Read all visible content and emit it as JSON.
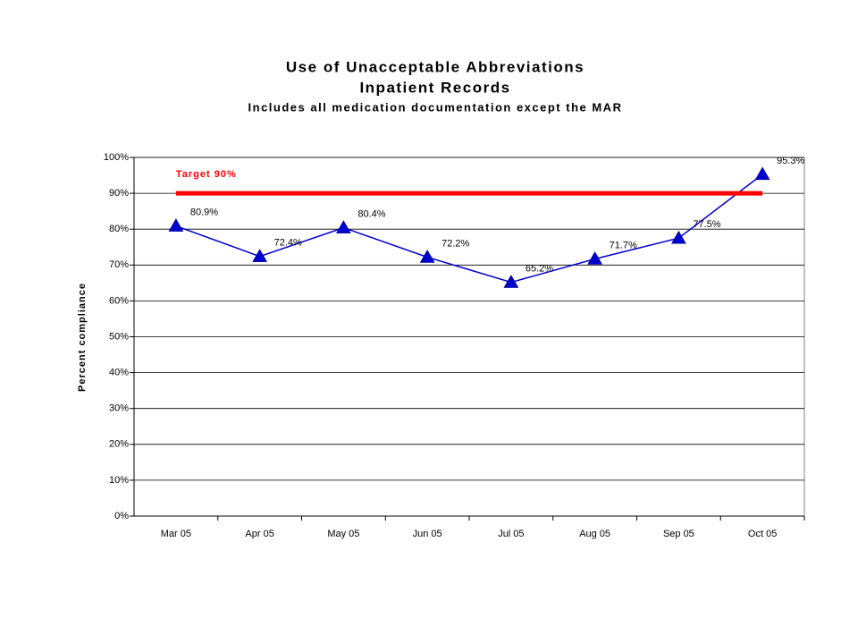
{
  "chart_data": {
    "type": "line",
    "title": "Use of Unacceptable Abbreviations",
    "subtitle": "Inpatient Records",
    "note": "Includes all medication documentation except the MAR",
    "y_label": "Percent compliance",
    "categories": [
      "Mar 05",
      "Apr 05",
      "May 05",
      "Jun 05",
      "Jul 05",
      "Aug 05",
      "Sep 05",
      "Oct 05"
    ],
    "series": [
      {
        "color": "#0000cc",
        "values": [
          80.9,
          72.4,
          80.4,
          72.2,
          65.2,
          71.7,
          77.5,
          95.3
        ],
        "value_labels": [
          "80.9%",
          "72.4%",
          "80.4%",
          "72.2%",
          "65.2%",
          "71.7%",
          "77.5%",
          "95.3%"
        ]
      },
      {
        "name": "Target 90%",
        "color": "#ff0000",
        "values": [
          90,
          90,
          90,
          90,
          90,
          90,
          90,
          90
        ]
      }
    ],
    "ylim": [
      0,
      100
    ],
    "yticks": [
      {
        "value": 0,
        "label": "0%"
      },
      {
        "value": 10,
        "label": "10%"
      },
      {
        "value": 20,
        "label": "20%"
      },
      {
        "value": 30,
        "label": "30%"
      },
      {
        "value": 40,
        "label": "40%"
      },
      {
        "value": 50,
        "label": "50%"
      },
      {
        "value": 60,
        "label": "60%"
      },
      {
        "value": 70,
        "label": "70%"
      },
      {
        "value": 80,
        "label": "80%"
      },
      {
        "value": 90,
        "label": "90%"
      },
      {
        "value": 100,
        "label": "100%"
      }
    ],
    "grid": true
  }
}
